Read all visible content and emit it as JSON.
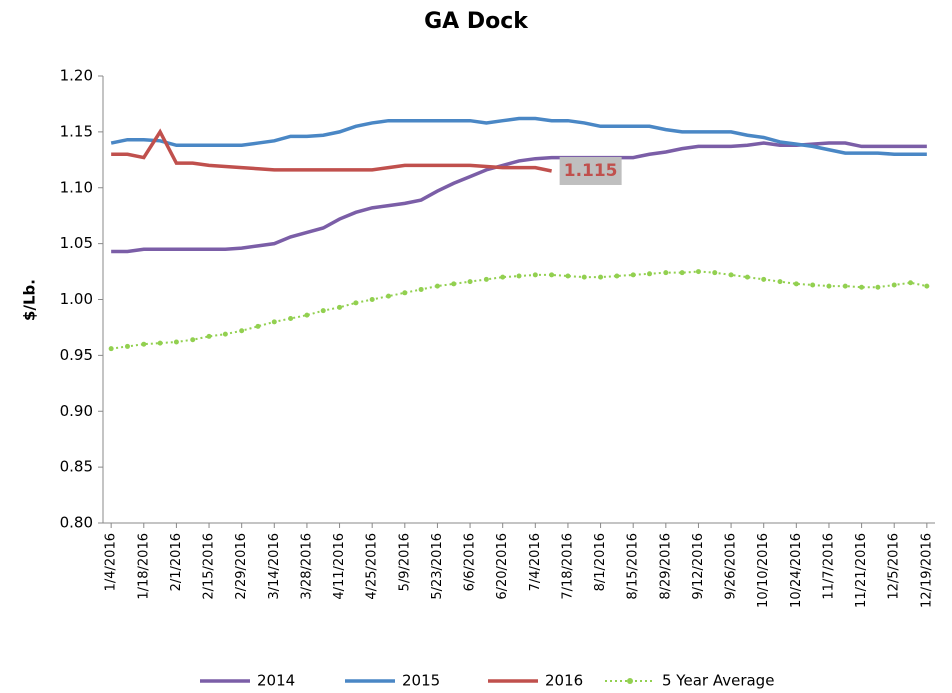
{
  "chart_data": {
    "type": "line",
    "title": "GA Dock",
    "y_label": "$/Lb.",
    "categories": [
      "1/4/2016",
      null,
      "1/18/2016",
      null,
      "2/1/2016",
      null,
      "2/15/2016",
      null,
      "2/29/2016",
      null,
      "3/14/2016",
      null,
      "3/28/2016",
      null,
      "4/11/2016",
      null,
      "4/25/2016",
      null,
      "5/9/2016",
      null,
      "5/23/2016",
      null,
      "6/6/2016",
      null,
      "6/20/2016",
      null,
      "7/4/2016",
      null,
      "7/18/2016",
      null,
      "8/1/2016",
      null,
      "8/15/2016",
      null,
      "8/29/2016",
      null,
      "9/12/2016",
      null,
      "9/26/2016",
      null,
      "10/10/2016",
      null,
      "10/24/2016",
      null,
      "11/7/2016",
      null,
      "11/21/2016",
      null,
      "12/5/2016",
      null,
      "12/19/2016"
    ],
    "series": [
      {
        "name": "2014",
        "color": "#7b5ea7",
        "dash": false,
        "values": [
          1.043,
          1.043,
          1.045,
          1.045,
          1.045,
          1.045,
          1.045,
          1.045,
          1.046,
          1.048,
          1.05,
          1.056,
          1.06,
          1.064,
          1.072,
          1.078,
          1.082,
          1.084,
          1.086,
          1.089,
          1.097,
          1.104,
          1.11,
          1.116,
          1.12,
          1.124,
          1.126,
          1.127,
          1.127,
          1.127,
          1.127,
          1.127,
          1.127,
          1.13,
          1.132,
          1.135,
          1.137,
          1.137,
          1.137,
          1.138,
          1.14,
          1.138,
          1.138,
          1.139,
          1.14,
          1.14,
          1.137,
          1.137,
          1.137,
          1.137,
          1.137
        ]
      },
      {
        "name": "2015",
        "color": "#4a87c5",
        "dash": false,
        "values": [
          1.14,
          1.143,
          1.143,
          1.142,
          1.138,
          1.138,
          1.138,
          1.138,
          1.138,
          1.14,
          1.142,
          1.146,
          1.146,
          1.147,
          1.15,
          1.155,
          1.158,
          1.16,
          1.16,
          1.16,
          1.16,
          1.16,
          1.16,
          1.158,
          1.16,
          1.162,
          1.162,
          1.16,
          1.16,
          1.158,
          1.155,
          1.155,
          1.155,
          1.155,
          1.152,
          1.15,
          1.15,
          1.15,
          1.15,
          1.147,
          1.145,
          1.141,
          1.139,
          1.137,
          1.134,
          1.131,
          1.131,
          1.131,
          1.13,
          1.13,
          1.13
        ]
      },
      {
        "name": "2016",
        "color": "#c0504d",
        "dash": false,
        "values": [
          1.13,
          1.13,
          1.127,
          1.15,
          1.122,
          1.122,
          1.12,
          1.119,
          1.118,
          1.117,
          1.116,
          1.116,
          1.116,
          1.116,
          1.116,
          1.116,
          1.116,
          1.118,
          1.12,
          1.12,
          1.12,
          1.12,
          1.12,
          1.119,
          1.118,
          1.118,
          1.118,
          1.115,
          null,
          null,
          null,
          null,
          null,
          null,
          null,
          null,
          null,
          null,
          null,
          null,
          null,
          null,
          null,
          null,
          null,
          null,
          null,
          null,
          null,
          null,
          null
        ]
      },
      {
        "name": "5 Year Average",
        "color": "#92d050",
        "dash": true,
        "values": [
          0.956,
          0.958,
          0.96,
          0.961,
          0.962,
          0.964,
          0.967,
          0.969,
          0.972,
          0.976,
          0.98,
          0.983,
          0.986,
          0.99,
          0.993,
          0.997,
          1.0,
          1.003,
          1.006,
          1.009,
          1.012,
          1.014,
          1.016,
          1.018,
          1.02,
          1.021,
          1.022,
          1.022,
          1.021,
          1.02,
          1.02,
          1.021,
          1.022,
          1.023,
          1.024,
          1.024,
          1.025,
          1.024,
          1.022,
          1.02,
          1.018,
          1.016,
          1.014,
          1.013,
          1.012,
          1.012,
          1.011,
          1.011,
          1.013,
          1.015,
          1.012
        ]
      }
    ],
    "annotation": {
      "series": 2,
      "index": 27
    },
    "ylim": [
      0.8,
      1.2
    ],
    "yticks": [
      {
        "value": 0.8,
        "label": "0.80"
      },
      0.85,
      {
        "value": 0.9,
        "label": "0.90"
      },
      0.95,
      {
        "value": 1.0,
        "label": "1.00"
      },
      1.05,
      {
        "value": 1.1,
        "label": "1.10"
      },
      1.15,
      {
        "value": 1.2,
        "label": "1.20"
      }
    ],
    "grid": false,
    "legend": "bottom"
  }
}
